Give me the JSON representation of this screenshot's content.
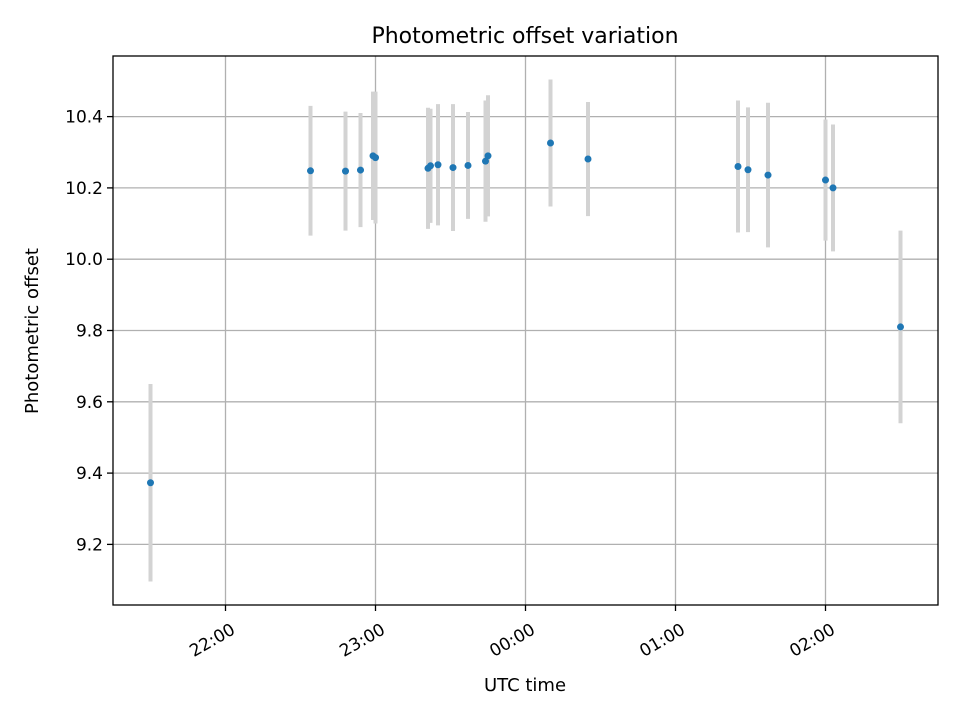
{
  "chart_data": {
    "type": "scatter",
    "title": "Photometric offset variation",
    "xlabel": "UTC time",
    "ylabel": "Photometric offset",
    "x_axis_type": "time",
    "xlim": [
      "21:15",
      "02:45"
    ],
    "ylim": [
      9.03,
      10.57
    ],
    "x_ticks": [
      "22:00",
      "23:00",
      "00:00",
      "01:00",
      "02:00"
    ],
    "y_ticks": [
      "9.2",
      "9.4",
      "9.6",
      "9.8",
      "10.0",
      "10.2",
      "10.4"
    ],
    "grid": true,
    "legend": "none",
    "colors": {
      "point": "#1f77b4",
      "errorbar": "#d3d3d3",
      "grid": "#b0b0b0"
    },
    "series": [
      {
        "points": [
          {
            "x": "21:30",
            "y": 9.373,
            "err": 0.277
          },
          {
            "x": "22:34",
            "y": 10.248,
            "err": 0.182
          },
          {
            "x": "22:48",
            "y": 10.247,
            "err": 0.167
          },
          {
            "x": "22:54",
            "y": 10.25,
            "err": 0.16
          },
          {
            "x": "22:59",
            "y": 10.29,
            "err": 0.18
          },
          {
            "x": "23:00",
            "y": 10.285,
            "err": 0.185
          },
          {
            "x": "23:21",
            "y": 10.255,
            "err": 0.17
          },
          {
            "x": "23:22",
            "y": 10.262,
            "err": 0.16
          },
          {
            "x": "23:25",
            "y": 10.265,
            "err": 0.17
          },
          {
            "x": "23:31",
            "y": 10.257,
            "err": 0.178
          },
          {
            "x": "23:37",
            "y": 10.263,
            "err": 0.15
          },
          {
            "x": "23:44",
            "y": 10.275,
            "err": 0.17
          },
          {
            "x": "23:45",
            "y": 10.29,
            "err": 0.17
          },
          {
            "x": "00:10",
            "y": 10.326,
            "err": 0.178
          },
          {
            "x": "00:25",
            "y": 10.281,
            "err": 0.16
          },
          {
            "x": "01:25",
            "y": 10.26,
            "err": 0.185
          },
          {
            "x": "01:29",
            "y": 10.251,
            "err": 0.175
          },
          {
            "x": "01:37",
            "y": 10.236,
            "err": 0.203
          },
          {
            "x": "02:00",
            "y": 10.222,
            "err": 0.17
          },
          {
            "x": "02:03",
            "y": 10.2,
            "err": 0.178
          },
          {
            "x": "02:30",
            "y": 9.81,
            "err": 0.27
          }
        ]
      }
    ]
  }
}
